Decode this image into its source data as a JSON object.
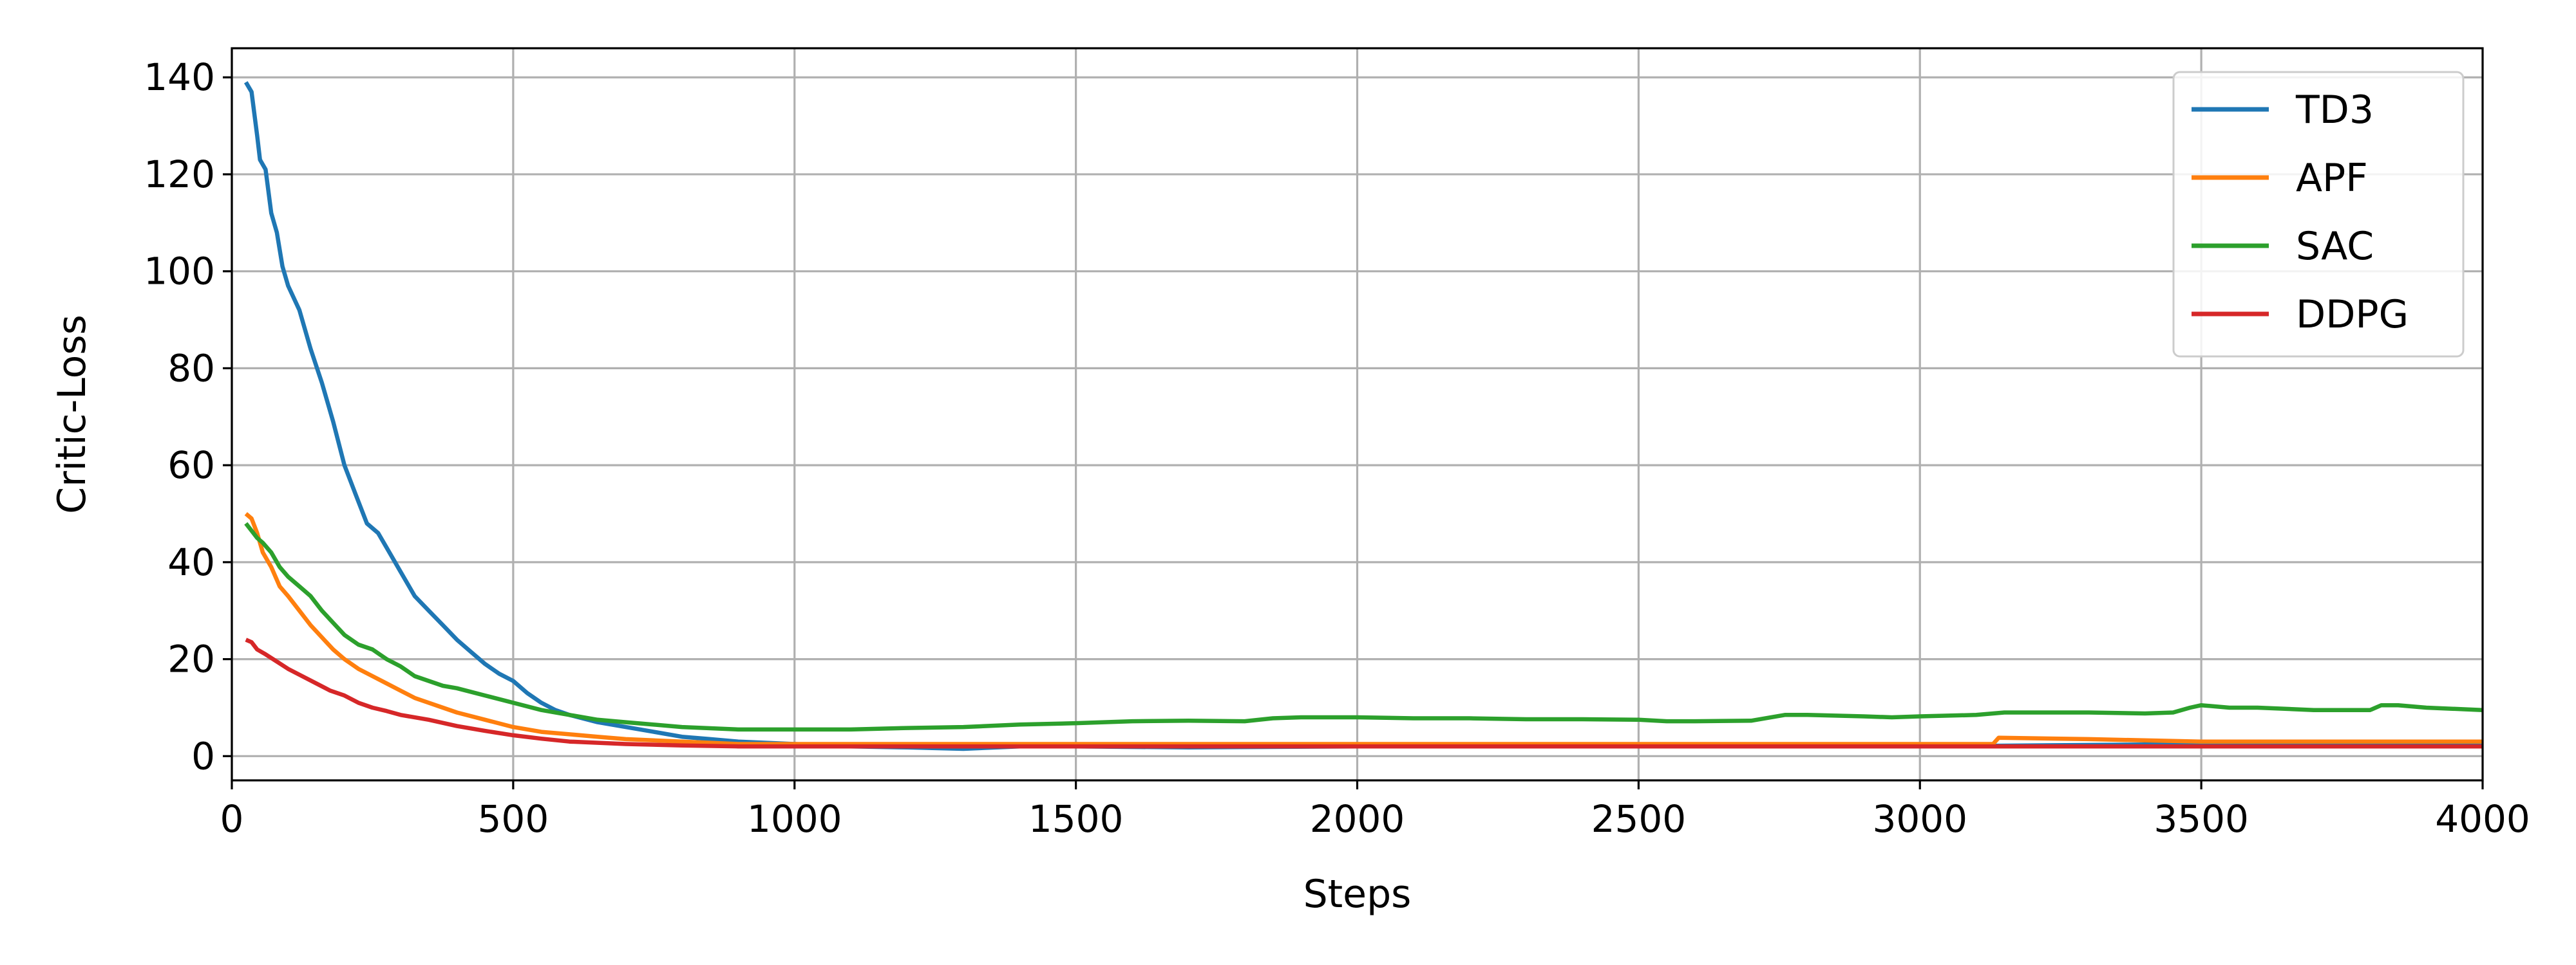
{
  "chart_data": {
    "type": "line",
    "title": "",
    "xlabel": "Steps",
    "ylabel": "Critic-Loss",
    "xlim": [
      0,
      4000
    ],
    "ylim": [
      -5,
      146
    ],
    "xticks": [
      0,
      500,
      1000,
      1500,
      2000,
      2500,
      3000,
      3500,
      4000
    ],
    "yticks": [
      0,
      20,
      40,
      60,
      80,
      100,
      120,
      140
    ],
    "grid": true,
    "legend_position": "top-right",
    "series": [
      {
        "name": "TD3",
        "color": "#1f77b4",
        "x": [
          25,
          35,
          45,
          50,
          60,
          70,
          80,
          90,
          100,
          120,
          140,
          160,
          180,
          200,
          220,
          240,
          260,
          280,
          300,
          325,
          350,
          375,
          400,
          425,
          450,
          475,
          500,
          525,
          550,
          575,
          600,
          650,
          700,
          750,
          800,
          850,
          900,
          1000,
          1100,
          1200,
          1300,
          1400,
          1500,
          1700,
          2000,
          2500,
          3000,
          3500,
          4000
        ],
        "y": [
          139,
          137,
          128,
          123,
          121,
          112,
          108,
          101,
          97,
          92,
          84,
          77,
          69,
          60,
          54,
          48,
          46,
          42,
          38,
          33,
          30,
          27,
          24,
          21.5,
          19,
          17,
          15.5,
          13,
          11,
          9.5,
          8.5,
          7,
          6,
          5,
          4,
          3.5,
          3,
          2.5,
          2,
          1.8,
          1.5,
          2,
          2,
          1.8,
          2,
          2,
          2,
          2.5,
          2.5
        ]
      },
      {
        "name": "APF",
        "color": "#ff7f0e",
        "x": [
          25,
          35,
          45,
          55,
          70,
          85,
          100,
          120,
          140,
          160,
          180,
          200,
          225,
          250,
          275,
          300,
          325,
          350,
          375,
          400,
          450,
          500,
          550,
          600,
          650,
          700,
          800,
          900,
          1000,
          1200,
          1500,
          2000,
          2500,
          3000,
          3130,
          3140,
          3300,
          3500,
          3700,
          4000
        ],
        "y": [
          50,
          49,
          46,
          42,
          39,
          35,
          33,
          30,
          27,
          24.5,
          22,
          20,
          18,
          16.5,
          15,
          13.5,
          12,
          11,
          10,
          9,
          7.5,
          6,
          5,
          4.5,
          4,
          3.5,
          3,
          2.5,
          2.5,
          2.5,
          2.5,
          2.5,
          2.5,
          2.5,
          2.5,
          3.8,
          3.5,
          3,
          3,
          3
        ]
      },
      {
        "name": "SAC",
        "color": "#2ca02c",
        "x": [
          25,
          35,
          45,
          55,
          70,
          85,
          100,
          120,
          140,
          160,
          180,
          200,
          225,
          250,
          275,
          300,
          325,
          350,
          375,
          400,
          450,
          500,
          550,
          600,
          650,
          700,
          800,
          900,
          1000,
          1100,
          1200,
          1300,
          1400,
          1500,
          1600,
          1700,
          1800,
          1850,
          1900,
          2000,
          2100,
          2200,
          2300,
          2400,
          2500,
          2550,
          2600,
          2700,
          2760,
          2800,
          2900,
          2950,
          3000,
          3100,
          3150,
          3200,
          3300,
          3400,
          3450,
          3480,
          3500,
          3550,
          3600,
          3700,
          3800,
          3820,
          3850,
          3900,
          4000
        ],
        "y": [
          48,
          46.5,
          45,
          44,
          42,
          39,
          37,
          35,
          33,
          30,
          27.5,
          25,
          23,
          22,
          20,
          18.5,
          16.5,
          15.5,
          14.5,
          14,
          12.5,
          11,
          9.5,
          8.5,
          7.5,
          7,
          6,
          5.5,
          5.5,
          5.5,
          5.8,
          6,
          6.5,
          6.8,
          7.2,
          7.3,
          7.2,
          7.8,
          8,
          8,
          7.8,
          7.8,
          7.6,
          7.6,
          7.5,
          7.2,
          7.2,
          7.3,
          8.5,
          8.5,
          8.2,
          8,
          8.2,
          8.5,
          9,
          9,
          9,
          8.8,
          9,
          10,
          10.5,
          10,
          10,
          9.5,
          9.5,
          10.5,
          10.5,
          10,
          9.5
        ]
      },
      {
        "name": "DDPG",
        "color": "#d62728",
        "x": [
          25,
          35,
          45,
          60,
          80,
          100,
          125,
          150,
          175,
          200,
          225,
          250,
          275,
          300,
          350,
          400,
          450,
          500,
          550,
          600,
          700,
          800,
          900,
          1000,
          1200,
          1500,
          2000,
          2500,
          3000,
          3500,
          4000
        ],
        "y": [
          24,
          23.5,
          22,
          21,
          19.5,
          18,
          16.5,
          15,
          13.5,
          12.5,
          11,
          10,
          9.3,
          8.5,
          7.5,
          6.2,
          5.2,
          4.3,
          3.6,
          3,
          2.5,
          2.2,
          2,
          2,
          2,
          2,
          2,
          2,
          2,
          2,
          2
        ]
      }
    ]
  }
}
